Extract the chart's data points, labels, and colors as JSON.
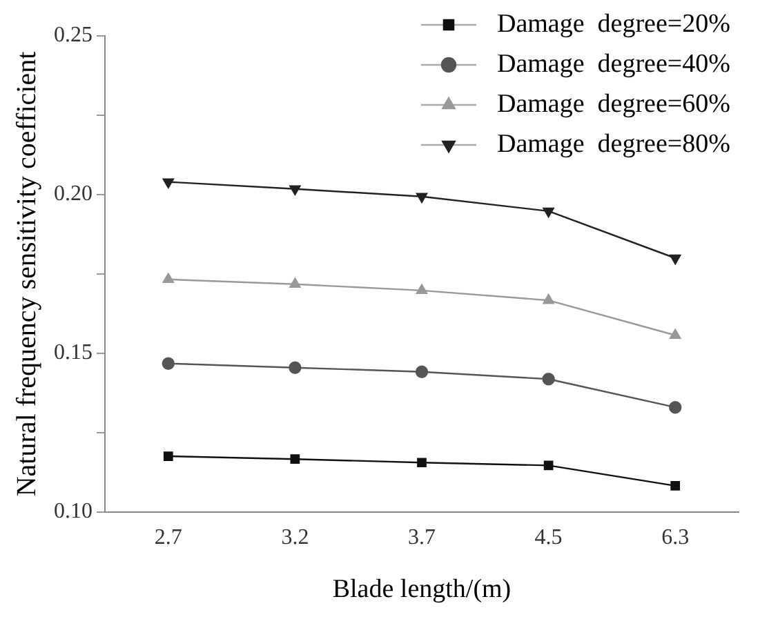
{
  "chart_data": {
    "type": "line",
    "xlabel": "Blade length/(m)",
    "ylabel": "Natural frequency sensitivity coefficient",
    "categories": [
      "2.7",
      "3.2",
      "3.7",
      "4.5",
      "6.3"
    ],
    "series": [
      {
        "name": "Damage  degree=20%",
        "color": "#111111",
        "marker": "square",
        "values": [
          0.1176,
          0.1167,
          0.1156,
          0.1147,
          0.1083
        ]
      },
      {
        "name": "Damage  degree=40%",
        "color": "#555555",
        "marker": "circle",
        "values": [
          0.1468,
          0.1455,
          0.1442,
          0.1419,
          0.133
        ]
      },
      {
        "name": "Damage  degree=60%",
        "color": "#999999",
        "marker": "triangle",
        "values": [
          0.1733,
          0.1718,
          0.1698,
          0.1667,
          0.1557
        ]
      },
      {
        "name": "Damage  degree=80%",
        "color": "#222222",
        "marker": "triangle-down",
        "values": [
          0.204,
          0.2018,
          0.1994,
          0.1948,
          0.18
        ]
      }
    ],
    "ylim": [
      0.1,
      0.25
    ],
    "yticks": [
      {
        "value": 0.1,
        "label": "0.10"
      },
      {
        "value": 0.125,
        "label": null
      },
      0.15,
      {
        "value": 0.175,
        "label": null
      },
      {
        "value": 0.2,
        "label": "0.20"
      },
      {
        "value": 0.225,
        "label": null
      },
      0.25
    ],
    "grid": false,
    "legend": "top right",
    "line_style": "solid"
  }
}
